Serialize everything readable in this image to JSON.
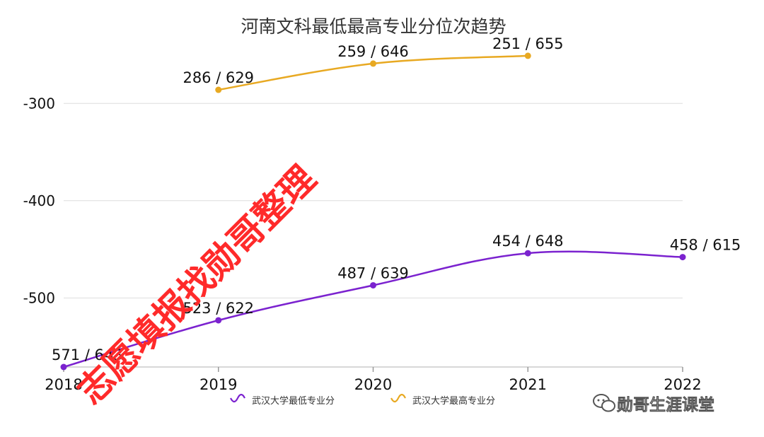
{
  "chart_data": {
    "type": "line",
    "title": "河南文科最低最高专业分位次趋势",
    "x": [
      "2018",
      "2019",
      "2020",
      "2021",
      "2022"
    ],
    "y_ticks": [
      "-300",
      "-400",
      "-500"
    ],
    "ylim": [
      -571,
      -230
    ],
    "grid": true,
    "legend_position": "bottom",
    "series": [
      {
        "name": "武汉大学最低专业分",
        "color": "#7b22cf",
        "values": [
          -571,
          -523,
          -487,
          -454,
          -458
        ],
        "labels": [
          "571 / 643",
          "523 / 622",
          "487 / 639",
          "454 / 648",
          "458 / 615"
        ]
      },
      {
        "name": "武汉大学最高专业分",
        "color": "#e8a922",
        "values": [
          null,
          -286,
          -259,
          -251,
          null
        ],
        "labels": [
          "",
          "286 / 629",
          "259 / 646",
          "251 / 655",
          ""
        ]
      }
    ]
  },
  "watermark": "志愿填报找勋哥整理",
  "brand": {
    "icon": "wechat-icon",
    "text": "勋哥生涯课堂"
  }
}
